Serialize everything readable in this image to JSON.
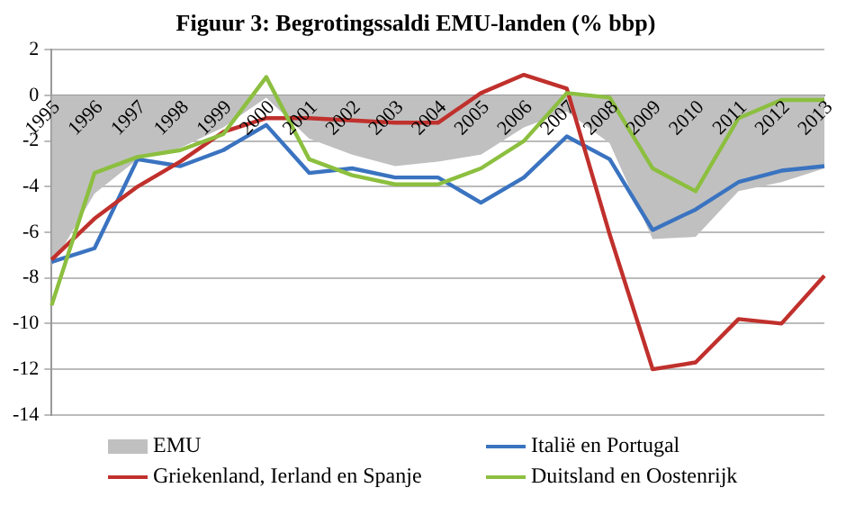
{
  "chart_data": {
    "type": "line",
    "title": "Figuur 3: Begrotingssaldi EMU-landen (% bbp)",
    "categories": [
      "1995",
      "1996",
      "1997",
      "1998",
      "1999",
      "2000",
      "2001",
      "2002",
      "2003",
      "2004",
      "2005",
      "2006",
      "2007",
      "2008",
      "2009",
      "2010",
      "2011",
      "2012",
      "2013"
    ],
    "series": [
      {
        "name": "EMU",
        "type": "area",
        "color": "#c0c0c0",
        "values": [
          -7.5,
          -4.3,
          -2.8,
          -2.3,
          -1.4,
          -0.1,
          -1.9,
          -2.6,
          -3.1,
          -2.9,
          -2.6,
          -1.4,
          -0.7,
          -2.1,
          -6.3,
          -6.2,
          -4.2,
          -3.8,
          -3.2
        ]
      },
      {
        "name": "Italië en Portugal",
        "color": "#3a73c0",
        "values": [
          -7.3,
          -6.7,
          -2.8,
          -3.1,
          -2.4,
          -1.3,
          -3.4,
          -3.2,
          -3.6,
          -3.6,
          -4.7,
          -3.6,
          -1.8,
          -2.8,
          -5.9,
          -5.0,
          -3.8,
          -3.3,
          -3.1
        ]
      },
      {
        "name": "Griekenland, Ierland en Spanje",
        "color": "#c0302c",
        "values": [
          -7.2,
          -5.4,
          -4.0,
          -2.9,
          -1.6,
          -1.0,
          -1.0,
          -1.1,
          -1.2,
          -1.2,
          0.1,
          0.9,
          0.3,
          -6.1,
          -12.0,
          -11.7,
          -9.8,
          -10.0,
          -7.9
        ]
      },
      {
        "name": "Duitsland en Oostenrijk",
        "color": "#8cbf3f",
        "values": [
          -9.2,
          -3.4,
          -2.7,
          -2.4,
          -1.7,
          0.8,
          -2.8,
          -3.5,
          -3.9,
          -3.9,
          -3.2,
          -2.0,
          0.1,
          -0.1,
          -3.2,
          -4.2,
          -1.0,
          -0.2,
          -0.2
        ]
      }
    ],
    "ylim": [
      -14,
      2
    ],
    "yticks": [
      -14,
      -12,
      -10,
      -8,
      -6,
      -4,
      -2,
      0,
      2
    ],
    "grid": "y",
    "legend": "bottom"
  }
}
